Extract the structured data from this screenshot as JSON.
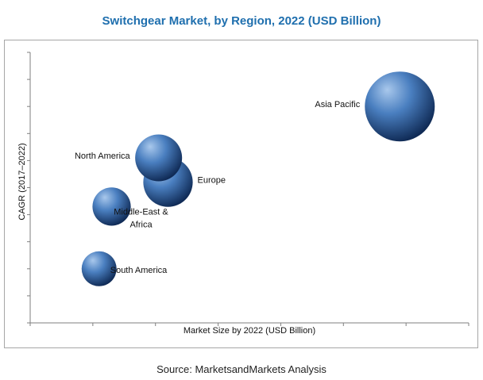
{
  "chart_data": {
    "type": "scatter",
    "title": "Switchgear Market, by Region, 2022 (USD Billion)",
    "xlabel": "Market Size by 2022 (USD Billion)",
    "ylabel": "CAGR (2017–2022)",
    "grid": false,
    "points": [
      {
        "label": "Asia Pacific",
        "x": 5.9,
        "y": 8.0,
        "size": 1.0
      },
      {
        "label": "North America",
        "x": 2.05,
        "y": 6.1,
        "size": 0.45
      },
      {
        "label": "Europe",
        "x": 2.2,
        "y": 5.2,
        "size": 0.5
      },
      {
        "label": "Middle-East & Africa",
        "x": 1.3,
        "y": 4.3,
        "size": 0.3
      },
      {
        "label": "South America",
        "x": 1.1,
        "y": 2.0,
        "size": 0.25
      }
    ],
    "xlim": [
      0,
      7
    ],
    "ylim": [
      0,
      10
    ]
  },
  "source": "Source: MarketsandMarkets Analysis",
  "colors": {
    "title": "#1f6fae",
    "bubble_light": "#a9c8ec",
    "bubble_mid": "#4a7fc0",
    "bubble_dark": "#0f2a55"
  }
}
